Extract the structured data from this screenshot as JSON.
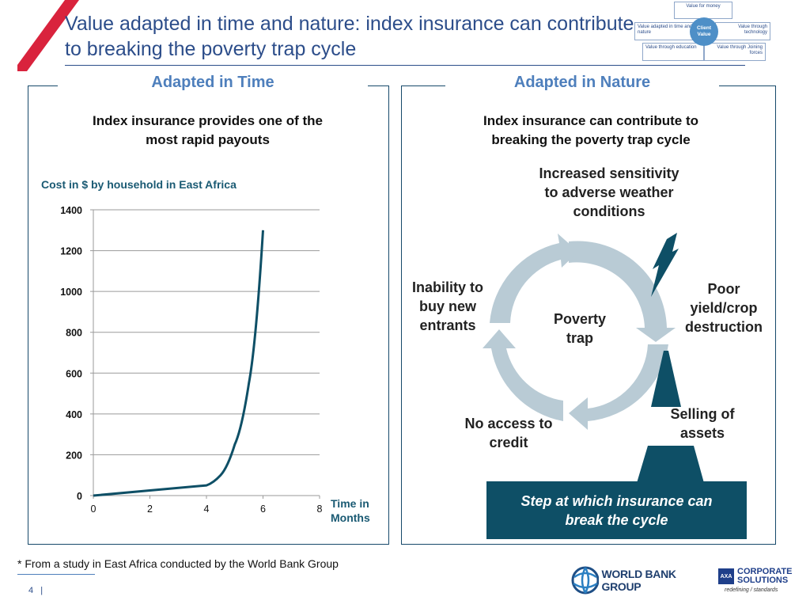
{
  "slide": {
    "title": "Value adapted in time and nature: index insurance can contribute to breaking the poverty trap cycle",
    "page_number": "4",
    "page_separator": "|",
    "footnote": "* From a study in East Africa conducted by the World Bank Group"
  },
  "value_diagram": {
    "top": "Value for money",
    "left": "Value adapted in time and nature",
    "center": "Client Value",
    "right": "Value through technology",
    "bottom_left": "Value through education",
    "bottom_right": "Value through Joining forces"
  },
  "left_panel": {
    "heading": "Adapted in Time",
    "subtitle": "Index insurance provides one of the most rapid payouts"
  },
  "right_panel": {
    "heading": "Adapted in Nature",
    "subtitle": "Index insurance can contribute to breaking the poverty trap cycle",
    "cycle": {
      "center": "Poverty trap",
      "top": "Increased sensitivity to adverse weather conditions",
      "right": "Poor yield/crop destruction",
      "bottom_right": "Selling of assets",
      "bottom_left": "No access to credit",
      "left": "Inability to buy new entrants"
    },
    "callout": "Step at which insurance can break the cycle"
  },
  "chart_data": {
    "type": "line",
    "title": "Cost in $ by household in East Africa",
    "xlabel": "Time in Months",
    "ylabel": "",
    "x_ticks": [
      0,
      2,
      4,
      6,
      8
    ],
    "y_ticks": [
      0,
      200,
      400,
      600,
      800,
      1000,
      1200,
      1400
    ],
    "xlim": [
      0,
      8
    ],
    "ylim": [
      0,
      1400
    ],
    "grid": true,
    "series": [
      {
        "values": [
          [
            0,
            0
          ],
          [
            2,
            25
          ],
          [
            4,
            50
          ],
          [
            4.5,
            100
          ],
          [
            5,
            250
          ],
          [
            5.5,
            550
          ],
          [
            6,
            1300
          ]
        ]
      }
    ]
  },
  "logos": {
    "world_bank": "WORLD BANK GROUP",
    "axa_line1": "CORPORATE",
    "axa_line2": "SOLUTIONS",
    "axa_tagline": "redefining / standards",
    "axa_mark": "AXA"
  },
  "colors": {
    "title": "#2c4d8a",
    "accent_red": "#d9233d",
    "dark_teal": "#0e4f66",
    "cycle_arrow": "#b9cbd5",
    "heading_blue": "#4e7fbc"
  }
}
